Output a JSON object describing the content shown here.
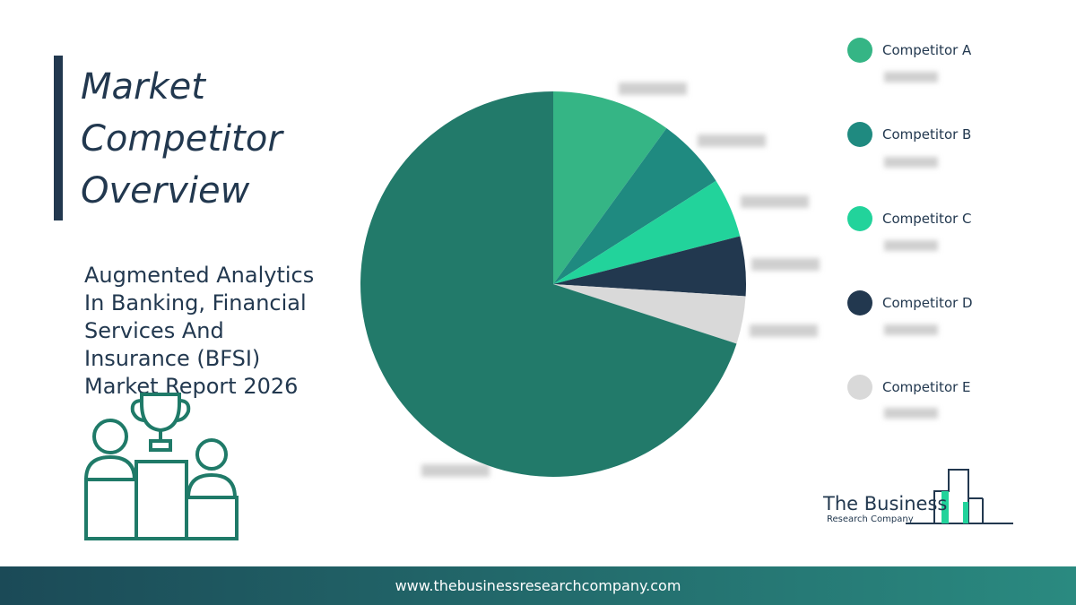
{
  "header": {
    "title_lines": [
      "Market",
      "Competitor",
      "Overview"
    ],
    "subtitle": "Augmented Analytics In Banking, Financial Services And Insurance (BFSI) Market Report 2026"
  },
  "logo": {
    "line1": "The Business",
    "line2": "Research Company"
  },
  "footer": {
    "url": "www.thebusinessresearchcompany.com"
  },
  "chart_data": {
    "type": "pie",
    "categories": [
      "Competitor A",
      "Competitor B",
      "Competitor C",
      "Competitor D",
      "Competitor E",
      null
    ],
    "values": [
      10,
      6,
      5,
      5,
      4,
      70
    ],
    "colors": [
      "#35b585",
      "#1f8a80",
      "#22d39b",
      "#22384f",
      "#d9d9d9",
      "#227a6a"
    ],
    "legend": "right"
  }
}
